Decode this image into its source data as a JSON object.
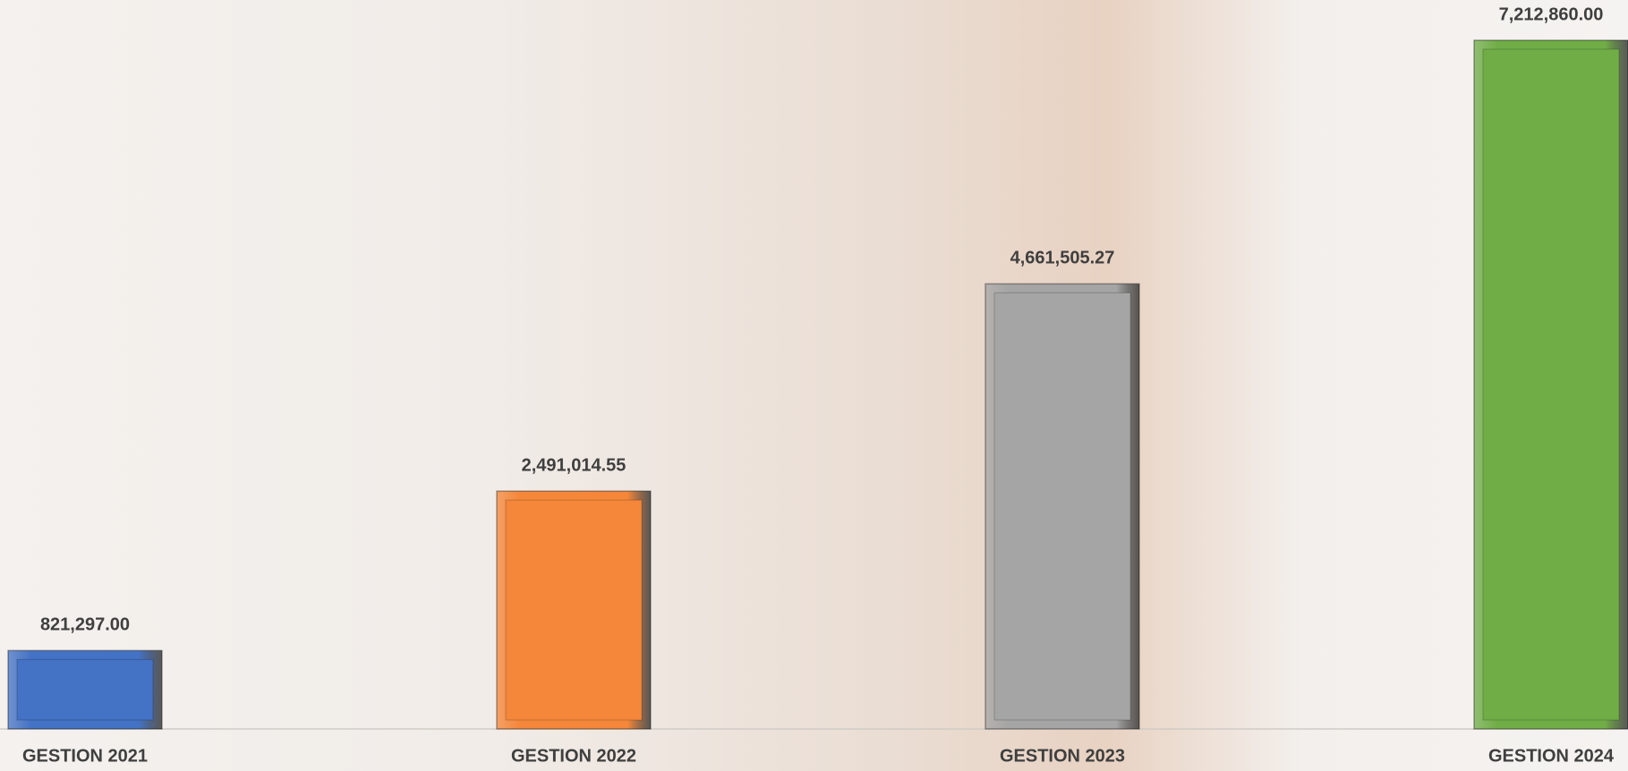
{
  "chart_data": {
    "type": "bar",
    "categories": [
      "GESTION 2021",
      "GESTION 2022",
      "GESTION 2023",
      "GESTION 2024"
    ],
    "values": [
      821297.0,
      2491014.55,
      4661505.27,
      7212860.0
    ],
    "value_labels": [
      "821,297.00",
      "2,491,014.55",
      "4,661,505.27",
      "7,212,860.00"
    ],
    "colors": [
      "#4472c4",
      "#f5873a",
      "#a5a5a5",
      "#70ad47"
    ]
  }
}
